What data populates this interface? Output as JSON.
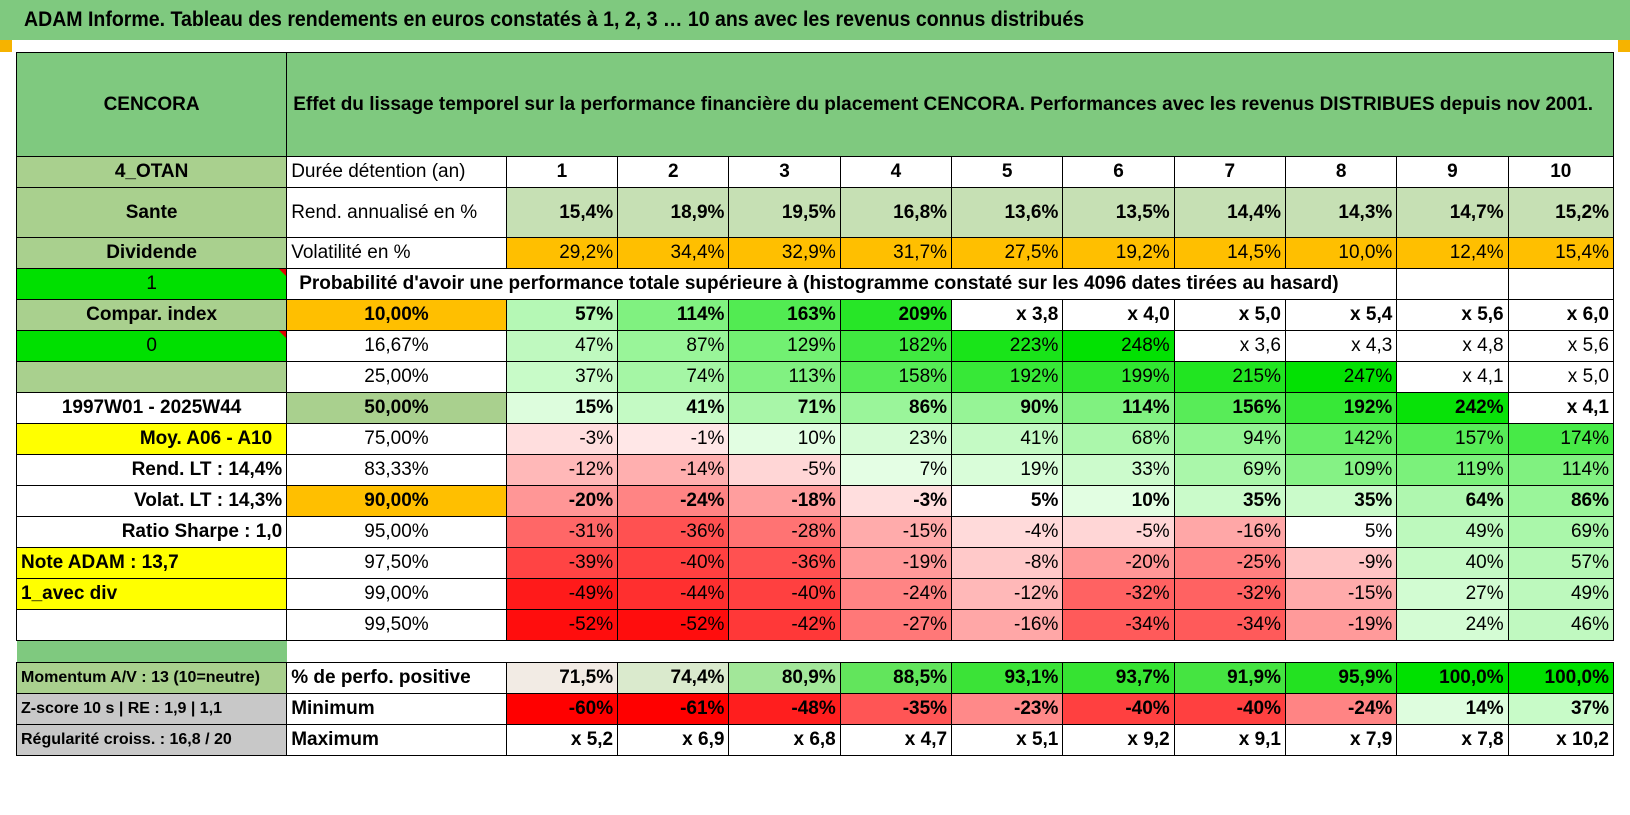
{
  "title": "ADAM Informe. Tableau des rendements en euros constatés à 1, 2, 3 … 10 ans avec les revenus connus distribués",
  "header": {
    "fund": "CENCORA",
    "description": "Effet du lissage temporel sur la performance financière du placement CENCORA. Performances avec les revenus DISTRIBUES depuis nov 2001."
  },
  "side": {
    "code": "4_OTAN",
    "sector": "Sante",
    "type": "Dividende",
    "flag1": "1",
    "compar": "Compar. index",
    "flag2": "0",
    "period": "1997W01 - 2025W44",
    "moy": "Moy. A06 - A10",
    "rend_lt": "Rend. LT :    14,4%",
    "volat_lt": "Volat. LT :    14,3%",
    "sharpe": "Ratio Sharpe :    1,0",
    "note": "Note ADAM : 13,7",
    "avec_div": "1_avec div",
    "momentum": "Momentum A/V : 13 (10=neutre)",
    "zscore": "Z-score 10 s | RE : 1,9 | 1,1",
    "regularite": "Régularité croiss. : 16,8 / 20"
  },
  "rows": {
    "duration_label": "Durée détention (an)",
    "years": [
      "1",
      "2",
      "3",
      "4",
      "5",
      "6",
      "7",
      "8",
      "9",
      "10"
    ],
    "rend_label": "Rend. annualisé en %",
    "rend": [
      "15,4%",
      "18,9%",
      "19,5%",
      "16,8%",
      "13,6%",
      "13,5%",
      "14,4%",
      "14,3%",
      "14,7%",
      "15,2%"
    ],
    "vol_label": "Volatilité en %",
    "vol": [
      "29,2%",
      "34,4%",
      "32,9%",
      "31,7%",
      "27,5%",
      "19,2%",
      "14,5%",
      "10,0%",
      "12,4%",
      "15,4%"
    ],
    "prob_label": "Probabilité d'avoir une performance totale supérieure à (histogramme constaté sur les 4096 dates tirées au hasard)"
  },
  "quantiles": [
    {
      "p": "10,00%",
      "values": [
        "57%",
        "114%",
        "163%",
        "209%",
        "x 3,8",
        "x 4,0",
        "x 5,0",
        "x 5,4",
        "x 5,6",
        "x 6,0"
      ]
    },
    {
      "p": "16,67%",
      "values": [
        "47%",
        "87%",
        "129%",
        "182%",
        "223%",
        "248%",
        "x 3,6",
        "x 4,3",
        "x 4,8",
        "x 5,6"
      ]
    },
    {
      "p": "25,00%",
      "values": [
        "37%",
        "74%",
        "113%",
        "158%",
        "192%",
        "199%",
        "215%",
        "247%",
        "x 4,1",
        "x 5,0"
      ]
    },
    {
      "p": "50,00%",
      "values": [
        "15%",
        "41%",
        "71%",
        "86%",
        "90%",
        "114%",
        "156%",
        "192%",
        "242%",
        "x 4,1"
      ]
    },
    {
      "p": "75,00%",
      "values": [
        "-3%",
        "-1%",
        "10%",
        "23%",
        "41%",
        "68%",
        "94%",
        "142%",
        "157%",
        "174%"
      ]
    },
    {
      "p": "83,33%",
      "values": [
        "-12%",
        "-14%",
        "-5%",
        "7%",
        "19%",
        "33%",
        "69%",
        "109%",
        "119%",
        "114%"
      ]
    },
    {
      "p": "90,00%",
      "values": [
        "-20%",
        "-24%",
        "-18%",
        "-3%",
        "5%",
        "10%",
        "35%",
        "35%",
        "64%",
        "86%"
      ]
    },
    {
      "p": "95,00%",
      "values": [
        "-31%",
        "-36%",
        "-28%",
        "-15%",
        "-4%",
        "-5%",
        "-16%",
        "5%",
        "49%",
        "69%"
      ]
    },
    {
      "p": "97,50%",
      "values": [
        "-39%",
        "-40%",
        "-36%",
        "-19%",
        "-8%",
        "-20%",
        "-25%",
        "-9%",
        "40%",
        "57%"
      ]
    },
    {
      "p": "99,00%",
      "values": [
        "-49%",
        "-44%",
        "-40%",
        "-24%",
        "-12%",
        "-32%",
        "-32%",
        "-15%",
        "27%",
        "49%"
      ]
    },
    {
      "p": "99,50%",
      "values": [
        "-52%",
        "-52%",
        "-42%",
        "-27%",
        "-16%",
        "-34%",
        "-34%",
        "-19%",
        "24%",
        "46%"
      ]
    }
  ],
  "stats": [
    {
      "label": "% de perfo. positive",
      "values": [
        "71,5%",
        "74,4%",
        "80,9%",
        "88,5%",
        "93,1%",
        "93,7%",
        "91,9%",
        "95,9%",
        "100,0%",
        "100,0%"
      ]
    },
    {
      "label": "Minimum",
      "values": [
        "-60%",
        "-61%",
        "-48%",
        "-35%",
        "-23%",
        "-40%",
        "-40%",
        "-24%",
        "14%",
        "37%"
      ]
    },
    {
      "label": "Maximum",
      "values": [
        "x 5,2",
        "x 6,9",
        "x 6,8",
        "x 4,7",
        "x 5,1",
        "x 9,2",
        "x 9,1",
        "x 7,9",
        "x 7,8",
        "x 10,2"
      ]
    }
  ],
  "colors": {
    "header_green": "#7fc97f",
    "rend_bg": "#c6e0b4",
    "vol_orange": "#ffbf00",
    "highlight_yellow": "#ffff00",
    "flag_green": "#00e000"
  }
}
